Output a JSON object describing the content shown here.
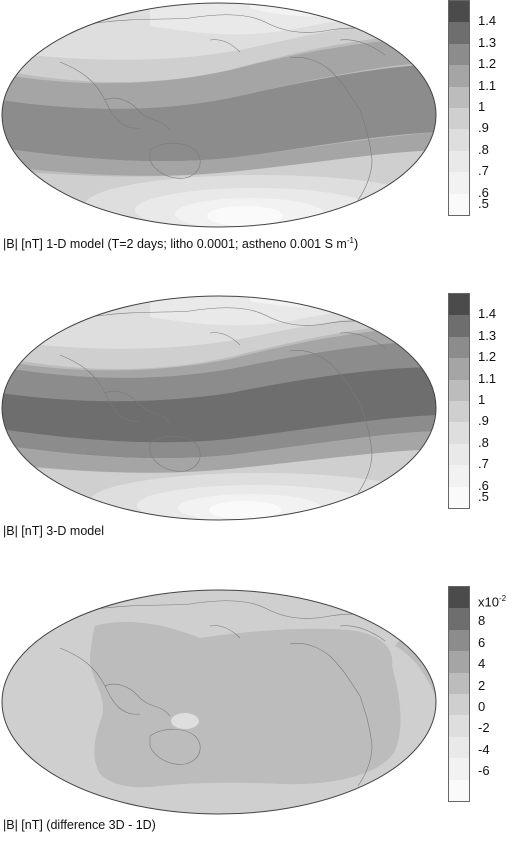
{
  "panels": [
    {
      "caption": {
        "a": "|B| [nT]   1-D model (T=2 days; litho 0.0001; astheno 0.001 S m",
        "sup": "-1",
        "b": ")"
      },
      "colorbar": {
        "labels": [
          "1.4",
          "1.3",
          "1.2",
          "1.1",
          "1",
          ".9",
          ".8",
          ".7",
          ".6",
          ".5"
        ],
        "colors": [
          "#4b4b4b",
          "#6e6e6e",
          "#8c8c8c",
          "#a5a5a5",
          "#bcbcbc",
          "#cfcfcf",
          "#dedede",
          "#e9e9e9",
          "#f2f2f2",
          "#fafafa"
        ]
      }
    },
    {
      "caption": {
        "a": "|B| [nT]  3-D model",
        "sup": "",
        "b": ""
      },
      "colorbar": {
        "labels": [
          "1.4",
          "1.3",
          "1.2",
          "1.1",
          "1",
          ".9",
          ".8",
          ".7",
          ".6",
          ".5"
        ],
        "colors": [
          "#4b4b4b",
          "#6e6e6e",
          "#8c8c8c",
          "#a5a5a5",
          "#bcbcbc",
          "#cfcfcf",
          "#dedede",
          "#e9e9e9",
          "#f2f2f2",
          "#fafafa"
        ]
      }
    },
    {
      "caption": {
        "a": "|B| [nT]   (difference 3D - 1D)",
        "sup": "",
        "b": ""
      },
      "colorbar": {
        "exponent": "x10",
        "exponent_sup": "-2",
        "labels": [
          "8",
          "6",
          "4",
          "2",
          "0",
          "-2",
          "-4",
          "-6"
        ],
        "colors": [
          "#4b4b4b",
          "#6e6e6e",
          "#8c8c8c",
          "#a5a5a5",
          "#bcbcbc",
          "#cfcfcf",
          "#dedede",
          "#e9e9e9",
          "#f2f2f2",
          "#fafafa"
        ]
      }
    }
  ]
}
